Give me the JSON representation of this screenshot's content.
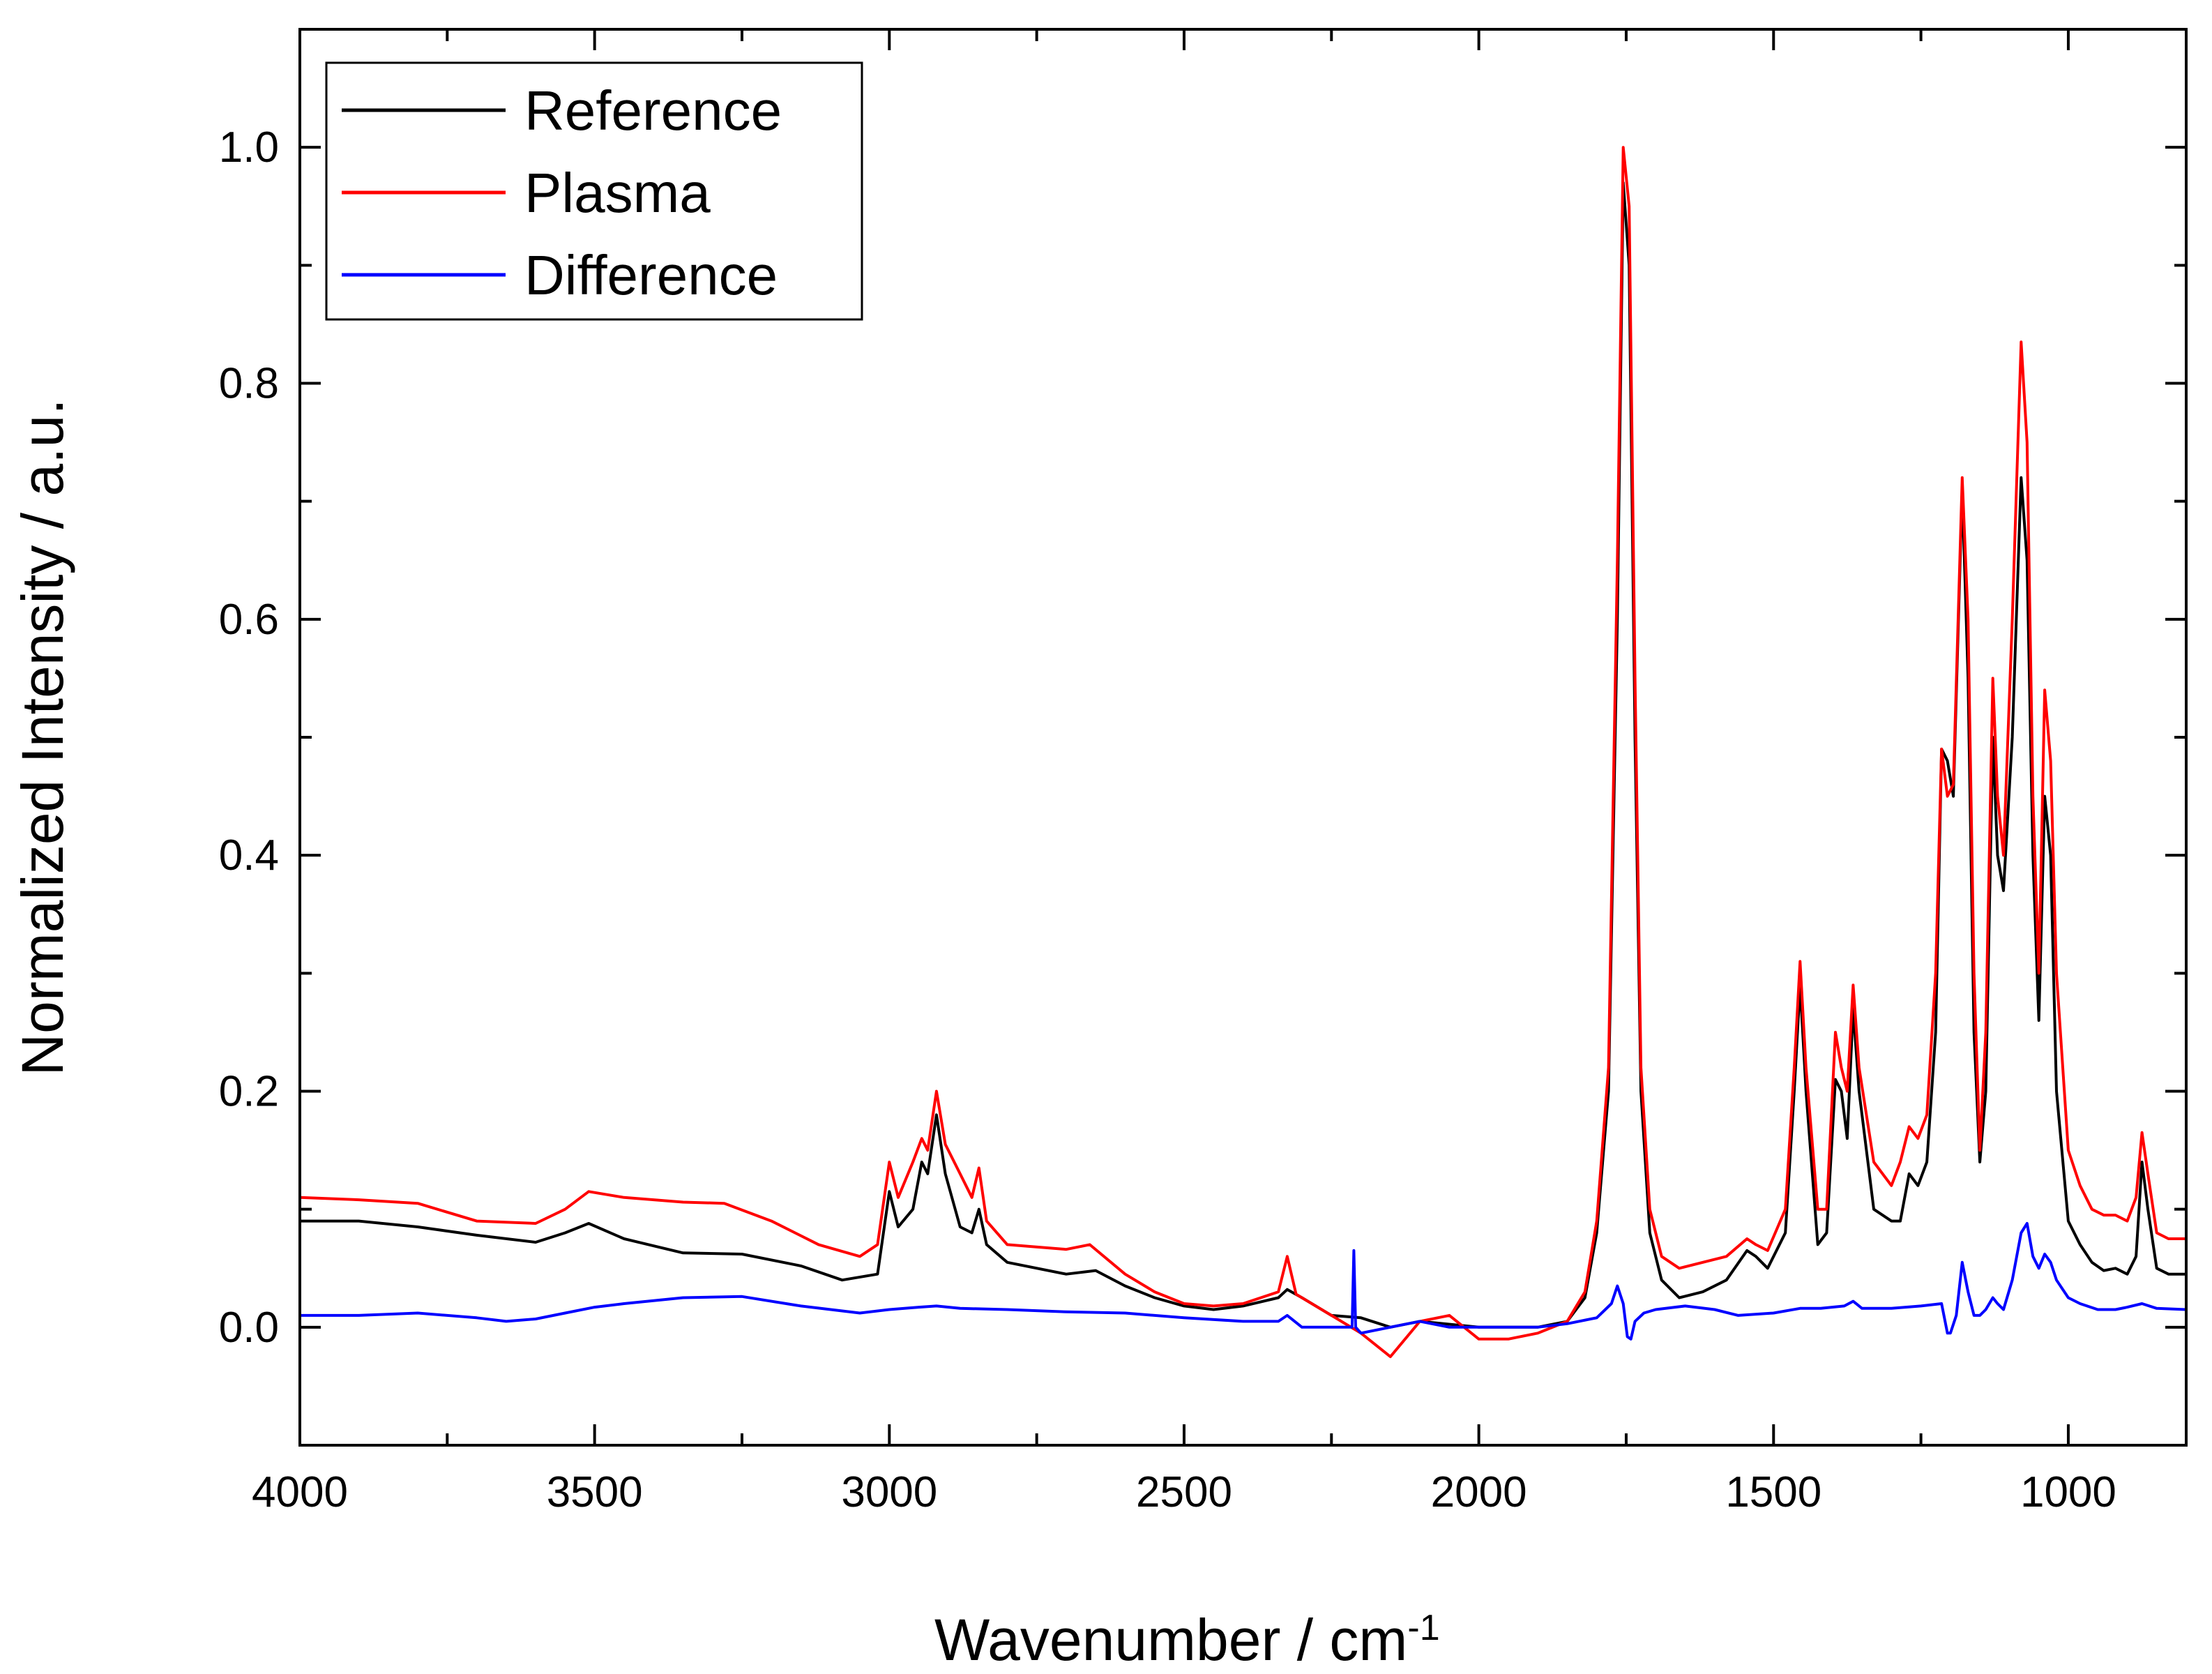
{
  "chart_data": {
    "type": "line",
    "title": "",
    "xlabel": "Wavenumber   / cm",
    "xlabel_superscript": "-1",
    "ylabel": "Normalized Intensity   / a.u.",
    "xlim": [
      4000,
      800
    ],
    "ylim": [
      -0.1,
      1.1
    ],
    "x_reversed": true,
    "x_ticks": [
      4000,
      3500,
      3000,
      2500,
      2000,
      1500,
      1000
    ],
    "x_tick_labels": [
      "4000",
      "3500",
      "3000",
      "2500",
      "2000",
      "1500",
      "1000"
    ],
    "x_minor_step": 250,
    "y_ticks": [
      0.0,
      0.2,
      0.4,
      0.6,
      0.8,
      1.0
    ],
    "y_tick_labels": [
      "0.0",
      "0.2",
      "0.4",
      "0.6",
      "0.8",
      "1.0"
    ],
    "y_minor_step": 0.1,
    "legend_position": "top-left",
    "series": [
      {
        "name": "Reference",
        "color": "#000000",
        "points": [
          [
            4000,
            0.09
          ],
          [
            3900,
            0.09
          ],
          [
            3800,
            0.085
          ],
          [
            3700,
            0.078
          ],
          [
            3600,
            0.072
          ],
          [
            3550,
            0.08
          ],
          [
            3510,
            0.088
          ],
          [
            3450,
            0.075
          ],
          [
            3350,
            0.063
          ],
          [
            3250,
            0.062
          ],
          [
            3150,
            0.052
          ],
          [
            3080,
            0.04
          ],
          [
            3020,
            0.045
          ],
          [
            3000,
            0.115
          ],
          [
            2985,
            0.085
          ],
          [
            2960,
            0.1
          ],
          [
            2945,
            0.14
          ],
          [
            2935,
            0.13
          ],
          [
            2920,
            0.18
          ],
          [
            2905,
            0.13
          ],
          [
            2880,
            0.085
          ],
          [
            2860,
            0.08
          ],
          [
            2848,
            0.1
          ],
          [
            2835,
            0.07
          ],
          [
            2800,
            0.055
          ],
          [
            2700,
            0.045
          ],
          [
            2650,
            0.048
          ],
          [
            2600,
            0.035
          ],
          [
            2550,
            0.025
          ],
          [
            2500,
            0.018
          ],
          [
            2450,
            0.015
          ],
          [
            2400,
            0.018
          ],
          [
            2340,
            0.025
          ],
          [
            2325,
            0.032
          ],
          [
            2300,
            0.025
          ],
          [
            2250,
            0.01
          ],
          [
            2200,
            0.008
          ],
          [
            2150,
            0.0
          ],
          [
            2100,
            0.005
          ],
          [
            2000,
            0.0
          ],
          [
            1900,
            0.0
          ],
          [
            1850,
            0.005
          ],
          [
            1820,
            0.025
          ],
          [
            1800,
            0.08
          ],
          [
            1780,
            0.2
          ],
          [
            1765,
            0.6
          ],
          [
            1755,
            0.97
          ],
          [
            1745,
            0.9
          ],
          [
            1735,
            0.5
          ],
          [
            1725,
            0.2
          ],
          [
            1710,
            0.08
          ],
          [
            1690,
            0.04
          ],
          [
            1660,
            0.025
          ],
          [
            1620,
            0.03
          ],
          [
            1580,
            0.04
          ],
          [
            1545,
            0.065
          ],
          [
            1530,
            0.06
          ],
          [
            1510,
            0.05
          ],
          [
            1480,
            0.08
          ],
          [
            1465,
            0.2
          ],
          [
            1455,
            0.29
          ],
          [
            1445,
            0.2
          ],
          [
            1425,
            0.07
          ],
          [
            1410,
            0.08
          ],
          [
            1395,
            0.21
          ],
          [
            1385,
            0.2
          ],
          [
            1375,
            0.16
          ],
          [
            1365,
            0.27
          ],
          [
            1355,
            0.2
          ],
          [
            1330,
            0.1
          ],
          [
            1300,
            0.09
          ],
          [
            1285,
            0.09
          ],
          [
            1270,
            0.13
          ],
          [
            1255,
            0.12
          ],
          [
            1240,
            0.14
          ],
          [
            1225,
            0.25
          ],
          [
            1215,
            0.49
          ],
          [
            1205,
            0.48
          ],
          [
            1195,
            0.45
          ],
          [
            1180,
            0.71
          ],
          [
            1170,
            0.55
          ],
          [
            1160,
            0.25
          ],
          [
            1150,
            0.14
          ],
          [
            1140,
            0.2
          ],
          [
            1128,
            0.5
          ],
          [
            1120,
            0.4
          ],
          [
            1110,
            0.37
          ],
          [
            1095,
            0.5
          ],
          [
            1080,
            0.72
          ],
          [
            1070,
            0.65
          ],
          [
            1060,
            0.4
          ],
          [
            1050,
            0.26
          ],
          [
            1040,
            0.45
          ],
          [
            1030,
            0.4
          ],
          [
            1020,
            0.2
          ],
          [
            1000,
            0.09
          ],
          [
            980,
            0.07
          ],
          [
            960,
            0.055
          ],
          [
            940,
            0.048
          ],
          [
            920,
            0.05
          ],
          [
            900,
            0.045
          ],
          [
            885,
            0.06
          ],
          [
            875,
            0.14
          ],
          [
            865,
            0.1
          ],
          [
            850,
            0.05
          ],
          [
            830,
            0.045
          ],
          [
            800,
            0.045
          ]
        ]
      },
      {
        "name": "Plasma",
        "color": "#ff0000",
        "points": [
          [
            4000,
            0.11
          ],
          [
            3900,
            0.108
          ],
          [
            3800,
            0.105
          ],
          [
            3700,
            0.09
          ],
          [
            3600,
            0.088
          ],
          [
            3550,
            0.1
          ],
          [
            3510,
            0.115
          ],
          [
            3450,
            0.11
          ],
          [
            3350,
            0.106
          ],
          [
            3280,
            0.105
          ],
          [
            3200,
            0.09
          ],
          [
            3120,
            0.07
          ],
          [
            3050,
            0.06
          ],
          [
            3020,
            0.07
          ],
          [
            3000,
            0.14
          ],
          [
            2985,
            0.11
          ],
          [
            2960,
            0.14
          ],
          [
            2945,
            0.16
          ],
          [
            2935,
            0.15
          ],
          [
            2920,
            0.2
          ],
          [
            2905,
            0.155
          ],
          [
            2880,
            0.13
          ],
          [
            2860,
            0.11
          ],
          [
            2848,
            0.135
          ],
          [
            2835,
            0.09
          ],
          [
            2800,
            0.07
          ],
          [
            2700,
            0.066
          ],
          [
            2660,
            0.07
          ],
          [
            2600,
            0.045
          ],
          [
            2550,
            0.03
          ],
          [
            2500,
            0.02
          ],
          [
            2450,
            0.018
          ],
          [
            2400,
            0.02
          ],
          [
            2340,
            0.03
          ],
          [
            2325,
            0.06
          ],
          [
            2310,
            0.028
          ],
          [
            2250,
            0.01
          ],
          [
            2200,
            -0.005
          ],
          [
            2150,
            -0.025
          ],
          [
            2100,
            0.005
          ],
          [
            2050,
            0.01
          ],
          [
            2000,
            -0.01
          ],
          [
            1950,
            -0.01
          ],
          [
            1900,
            -0.005
          ],
          [
            1850,
            0.005
          ],
          [
            1820,
            0.03
          ],
          [
            1800,
            0.09
          ],
          [
            1780,
            0.22
          ],
          [
            1765,
            0.65
          ],
          [
            1755,
            1.0
          ],
          [
            1745,
            0.95
          ],
          [
            1735,
            0.55
          ],
          [
            1725,
            0.22
          ],
          [
            1710,
            0.1
          ],
          [
            1690,
            0.06
          ],
          [
            1660,
            0.05
          ],
          [
            1620,
            0.055
          ],
          [
            1580,
            0.06
          ],
          [
            1545,
            0.075
          ],
          [
            1530,
            0.07
          ],
          [
            1510,
            0.065
          ],
          [
            1480,
            0.1
          ],
          [
            1465,
            0.22
          ],
          [
            1455,
            0.31
          ],
          [
            1445,
            0.22
          ],
          [
            1425,
            0.1
          ],
          [
            1410,
            0.1
          ],
          [
            1395,
            0.25
          ],
          [
            1385,
            0.22
          ],
          [
            1375,
            0.2
          ],
          [
            1365,
            0.29
          ],
          [
            1355,
            0.22
          ],
          [
            1330,
            0.14
          ],
          [
            1300,
            0.12
          ],
          [
            1285,
            0.14
          ],
          [
            1270,
            0.17
          ],
          [
            1255,
            0.16
          ],
          [
            1240,
            0.18
          ],
          [
            1225,
            0.3
          ],
          [
            1215,
            0.49
          ],
          [
            1205,
            0.45
          ],
          [
            1195,
            0.46
          ],
          [
            1180,
            0.72
          ],
          [
            1170,
            0.6
          ],
          [
            1160,
            0.3
          ],
          [
            1150,
            0.15
          ],
          [
            1140,
            0.25
          ],
          [
            1128,
            0.55
          ],
          [
            1120,
            0.45
          ],
          [
            1110,
            0.4
          ],
          [
            1095,
            0.6
          ],
          [
            1080,
            0.835
          ],
          [
            1070,
            0.75
          ],
          [
            1060,
            0.45
          ],
          [
            1050,
            0.3
          ],
          [
            1040,
            0.54
          ],
          [
            1030,
            0.48
          ],
          [
            1020,
            0.3
          ],
          [
            1000,
            0.15
          ],
          [
            980,
            0.12
          ],
          [
            960,
            0.1
          ],
          [
            940,
            0.095
          ],
          [
            920,
            0.095
          ],
          [
            900,
            0.09
          ],
          [
            885,
            0.11
          ],
          [
            875,
            0.165
          ],
          [
            865,
            0.13
          ],
          [
            850,
            0.08
          ],
          [
            830,
            0.075
          ],
          [
            800,
            0.075
          ]
        ]
      },
      {
        "name": "Difference",
        "color": "#0000ff",
        "points": [
          [
            4000,
            0.01
          ],
          [
            3900,
            0.01
          ],
          [
            3800,
            0.012
          ],
          [
            3700,
            0.008
          ],
          [
            3650,
            0.005
          ],
          [
            3600,
            0.007
          ],
          [
            3550,
            0.012
          ],
          [
            3500,
            0.017
          ],
          [
            3450,
            0.02
          ],
          [
            3350,
            0.025
          ],
          [
            3250,
            0.026
          ],
          [
            3150,
            0.018
          ],
          [
            3050,
            0.012
          ],
          [
            3000,
            0.015
          ],
          [
            2950,
            0.017
          ],
          [
            2920,
            0.018
          ],
          [
            2880,
            0.016
          ],
          [
            2800,
            0.015
          ],
          [
            2700,
            0.013
          ],
          [
            2600,
            0.012
          ],
          [
            2500,
            0.008
          ],
          [
            2400,
            0.005
          ],
          [
            2340,
            0.005
          ],
          [
            2325,
            0.01
          ],
          [
            2300,
            0.0
          ],
          [
            2250,
            0.0
          ],
          [
            2215,
            0.0
          ],
          [
            2212,
            0.065
          ],
          [
            2209,
            0.0
          ],
          [
            2200,
            -0.005
          ],
          [
            2150,
            0.0
          ],
          [
            2100,
            0.005
          ],
          [
            2050,
            0.0
          ],
          [
            2000,
            0.0
          ],
          [
            1950,
            0.0
          ],
          [
            1900,
            0.0
          ],
          [
            1850,
            0.003
          ],
          [
            1800,
            0.008
          ],
          [
            1775,
            0.02
          ],
          [
            1765,
            0.035
          ],
          [
            1755,
            0.02
          ],
          [
            1748,
            -0.008
          ],
          [
            1742,
            -0.01
          ],
          [
            1735,
            0.005
          ],
          [
            1720,
            0.012
          ],
          [
            1700,
            0.015
          ],
          [
            1650,
            0.018
          ],
          [
            1600,
            0.015
          ],
          [
            1560,
            0.01
          ],
          [
            1500,
            0.012
          ],
          [
            1455,
            0.016
          ],
          [
            1420,
            0.016
          ],
          [
            1380,
            0.018
          ],
          [
            1365,
            0.022
          ],
          [
            1350,
            0.016
          ],
          [
            1300,
            0.016
          ],
          [
            1250,
            0.018
          ],
          [
            1215,
            0.02
          ],
          [
            1205,
            -0.005
          ],
          [
            1200,
            -0.005
          ],
          [
            1190,
            0.01
          ],
          [
            1180,
            0.055
          ],
          [
            1170,
            0.03
          ],
          [
            1160,
            0.01
          ],
          [
            1150,
            0.01
          ],
          [
            1140,
            0.015
          ],
          [
            1128,
            0.025
          ],
          [
            1120,
            0.02
          ],
          [
            1110,
            0.015
          ],
          [
            1095,
            0.04
          ],
          [
            1080,
            0.08
          ],
          [
            1070,
            0.088
          ],
          [
            1060,
            0.06
          ],
          [
            1050,
            0.05
          ],
          [
            1040,
            0.062
          ],
          [
            1030,
            0.055
          ],
          [
            1020,
            0.04
          ],
          [
            1000,
            0.025
          ],
          [
            980,
            0.02
          ],
          [
            950,
            0.015
          ],
          [
            920,
            0.015
          ],
          [
            900,
            0.017
          ],
          [
            875,
            0.02
          ],
          [
            850,
            0.016
          ],
          [
            800,
            0.015
          ]
        ]
      }
    ]
  }
}
